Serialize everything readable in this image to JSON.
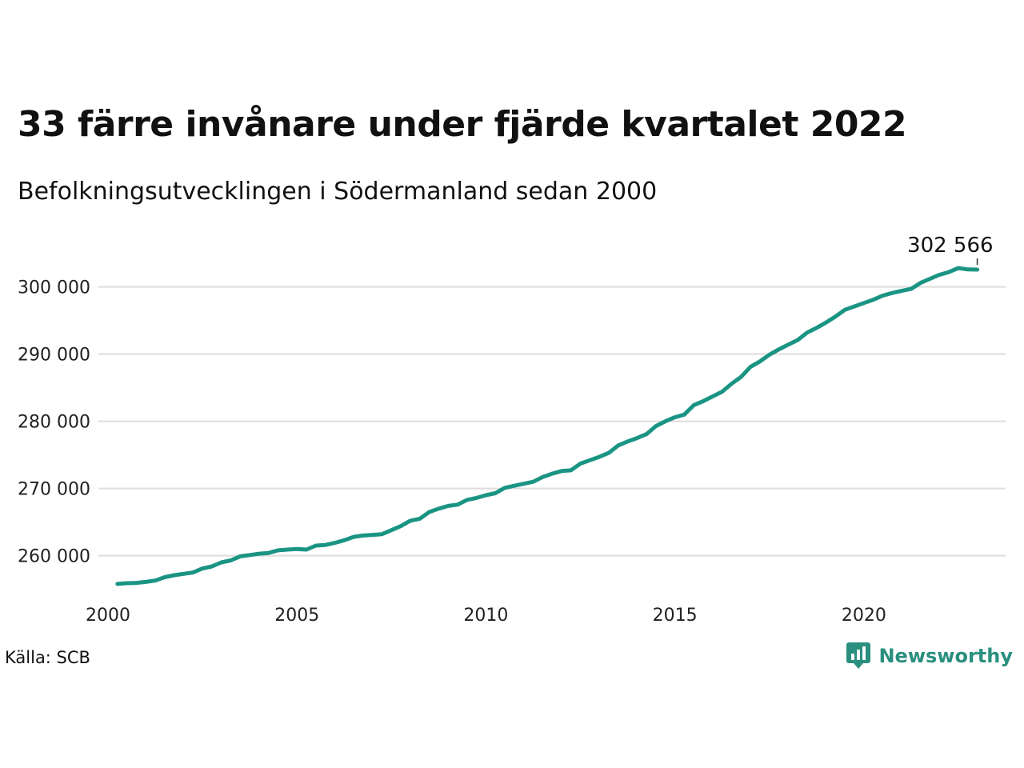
{
  "colors": {
    "line": "#1a9483",
    "grid": "#dddddd",
    "brand": "#2a8f7f"
  },
  "source": "Källa: SCB",
  "brand": {
    "name": "Newsworthy",
    "icon": "newsworthy-logo-icon"
  },
  "chart_data": {
    "type": "line",
    "title": "33 färre invånare under fjärde kvartalet 2022",
    "subtitle": "Befolkningsutvecklingen i Södermanland sedan 2000",
    "xlabel": "",
    "ylabel": "",
    "xlim": [
      2000,
      2023.75
    ],
    "ylim": [
      254000,
      304000
    ],
    "grid": "horizontal",
    "x_ticks": [
      2000,
      2005,
      2010,
      2015,
      2020
    ],
    "x_tick_labels": [
      "2000",
      "2005",
      "2010",
      "2015",
      "2020"
    ],
    "y_ticks": [
      260000,
      270000,
      280000,
      290000,
      300000
    ],
    "y_tick_labels": [
      "260 000",
      "270 000",
      "280 000",
      "290 000",
      "300 000"
    ],
    "end_label": "302 566",
    "series": [
      {
        "x": [
          2000.25,
          2000.5,
          2000.75,
          2001,
          2001.25,
          2001.5,
          2001.75,
          2002,
          2002.25,
          2002.5,
          2002.75,
          2003,
          2003.25,
          2003.5,
          2003.75,
          2004,
          2004.25,
          2004.5,
          2004.75,
          2005,
          2005.25,
          2005.5,
          2005.75,
          2006,
          2006.25,
          2006.5,
          2006.75,
          2007,
          2007.25,
          2007.5,
          2007.75,
          2008,
          2008.25,
          2008.5,
          2008.75,
          2009,
          2009.25,
          2009.5,
          2009.75,
          2010,
          2010.25,
          2010.5,
          2010.75,
          2011,
          2011.25,
          2011.5,
          2011.75,
          2012,
          2012.25,
          2012.5,
          2012.75,
          2013,
          2013.25,
          2013.5,
          2013.75,
          2014,
          2014.25,
          2014.5,
          2014.75,
          2015,
          2015.25,
          2015.5,
          2015.75,
          2016,
          2016.25,
          2016.5,
          2016.75,
          2017,
          2017.25,
          2017.5,
          2017.75,
          2018,
          2018.25,
          2018.5,
          2018.75,
          2019,
          2019.25,
          2019.5,
          2019.75,
          2020,
          2020.25,
          2020.5,
          2020.75,
          2021,
          2021.25,
          2021.5,
          2021.75,
          2022,
          2022.25,
          2022.5,
          2022.75,
          2023
        ],
        "values": [
          255800,
          255900,
          255950,
          256100,
          256300,
          256800,
          257100,
          257300,
          257500,
          258100,
          258400,
          259000,
          259300,
          259900,
          260100,
          260300,
          260400,
          260800,
          260900,
          261000,
          260900,
          261500,
          261600,
          261900,
          262300,
          262800,
          263000,
          263100,
          263200,
          263800,
          264400,
          265200,
          265500,
          266500,
          267000,
          267400,
          267600,
          268300,
          268600,
          269000,
          269300,
          270100,
          270400,
          270700,
          271000,
          271700,
          272200,
          272600,
          272700,
          273700,
          274200,
          274700,
          275300,
          276400,
          277000,
          277500,
          278100,
          279300,
          280000,
          280600,
          281000,
          282400,
          283000,
          283700,
          284400,
          285600,
          286600,
          288100,
          288900,
          289900,
          290700,
          291400,
          292100,
          293200,
          293900,
          294700,
          295600,
          296600,
          297100,
          297600,
          298100,
          298700,
          299100,
          299400,
          299700,
          300600,
          301200,
          301800,
          302200,
          302800,
          302600,
          302566
        ]
      }
    ]
  }
}
